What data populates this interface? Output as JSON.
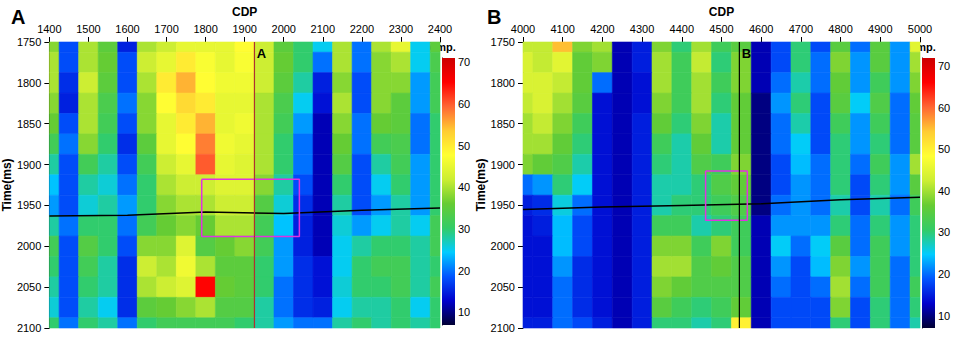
{
  "chart_data": [
    {
      "type": "heatmap",
      "title": "A",
      "xlabel": "CDP",
      "ylabel": "Time(ms)",
      "x": [
        1400,
        1450,
        1500,
        1550,
        1600,
        1650,
        1700,
        1750,
        1800,
        1850,
        1900,
        1950,
        2000,
        2050,
        2100,
        2150,
        2200,
        2250,
        2300,
        2350,
        2400
      ],
      "y": [
        1750,
        1775,
        1800,
        1825,
        1850,
        1875,
        1900,
        1925,
        1950,
        1975,
        2000,
        2025,
        2050,
        2075,
        2100
      ],
      "values": [
        [
          38,
          18,
          40,
          35,
          15,
          40,
          42,
          45,
          45,
          45,
          48,
          42,
          35,
          30,
          25,
          40,
          20,
          40,
          45,
          25,
          35
        ],
        [
          40,
          18,
          40,
          36,
          18,
          42,
          45,
          50,
          47,
          45,
          47,
          42,
          36,
          30,
          20,
          40,
          20,
          38,
          40,
          25,
          33
        ],
        [
          40,
          16,
          42,
          35,
          18,
          40,
          50,
          55,
          48,
          46,
          46,
          42,
          35,
          28,
          15,
          38,
          18,
          38,
          38,
          22,
          32
        ],
        [
          38,
          15,
          40,
          33,
          20,
          38,
          48,
          52,
          50,
          45,
          45,
          40,
          33,
          25,
          14,
          40,
          18,
          38,
          35,
          22,
          32
        ],
        [
          36,
          18,
          40,
          32,
          18,
          38,
          45,
          50,
          55,
          45,
          46,
          40,
          32,
          22,
          12,
          38,
          20,
          36,
          35,
          20,
          30
        ],
        [
          32,
          20,
          38,
          30,
          16,
          35,
          45,
          48,
          58,
          46,
          45,
          40,
          30,
          20,
          12,
          36,
          20,
          32,
          33,
          20,
          30
        ],
        [
          28,
          18,
          32,
          28,
          18,
          32,
          42,
          45,
          60,
          45,
          44,
          40,
          30,
          20,
          12,
          34,
          18,
          28,
          32,
          22,
          30
        ],
        [
          24,
          18,
          28,
          26,
          20,
          30,
          40,
          42,
          42,
          44,
          44,
          38,
          28,
          18,
          12,
          30,
          18,
          25,
          30,
          22,
          30
        ],
        [
          22,
          18,
          26,
          28,
          22,
          30,
          38,
          40,
          40,
          42,
          42,
          34,
          26,
          16,
          12,
          28,
          18,
          22,
          28,
          22,
          30
        ],
        [
          28,
          20,
          30,
          30,
          20,
          32,
          36,
          38,
          36,
          40,
          40,
          32,
          24,
          15,
          12,
          26,
          22,
          25,
          28,
          25,
          32
        ],
        [
          32,
          18,
          34,
          30,
          18,
          38,
          38,
          44,
          34,
          36,
          38,
          32,
          22,
          15,
          12,
          25,
          28,
          30,
          30,
          28,
          32
        ],
        [
          30,
          18,
          32,
          28,
          16,
          42,
          40,
          46,
          40,
          35,
          35,
          30,
          22,
          16,
          14,
          25,
          30,
          32,
          32,
          28,
          30
        ],
        [
          28,
          18,
          30,
          28,
          16,
          40,
          42,
          44,
          65,
          36,
          35,
          30,
          20,
          16,
          14,
          26,
          30,
          30,
          32,
          28,
          32
        ],
        [
          26,
          18,
          28,
          25,
          16,
          35,
          36,
          38,
          40,
          34,
          34,
          28,
          20,
          16,
          15,
          25,
          28,
          28,
          30,
          25,
          30
        ],
        [
          30,
          20,
          30,
          28,
          20,
          30,
          32,
          32,
          32,
          32,
          30,
          28,
          22,
          20,
          20,
          28,
          30,
          28,
          30,
          28,
          30
        ]
      ],
      "xlim": [
        1400,
        2400
      ],
      "xticks": [
        1400,
        1500,
        1600,
        1700,
        1800,
        1900,
        2000,
        2100,
        2200,
        2300,
        2400
      ],
      "ylim": [
        1750,
        2100
      ],
      "yticks": [
        1750,
        1800,
        1850,
        1900,
        1950,
        2000,
        2050,
        2100
      ],
      "grid": false,
      "colorbar": {
        "label": "Amp.",
        "range": [
          7,
          71
        ],
        "ticks": [
          10,
          20,
          30,
          40,
          50,
          60,
          70
        ]
      },
      "horizon": {
        "x": [
          1400,
          1600,
          1800,
          2000,
          2200,
          2400
        ],
        "y": [
          1963,
          1962,
          1958,
          1960,
          1956,
          1953
        ],
        "color": "#000000"
      },
      "box": {
        "x": [
          1790,
          2040
        ],
        "y": [
          1918,
          1988
        ],
        "color": "#e033e0"
      },
      "marker": {
        "label": "A",
        "x": 1925,
        "color": "#b03030"
      }
    },
    {
      "type": "heatmap",
      "title": "B",
      "xlabel": "CDP",
      "ylabel": "Time(ms)",
      "x": [
        4000,
        4050,
        4100,
        4150,
        4200,
        4250,
        4300,
        4350,
        4400,
        4450,
        4500,
        4550,
        4600,
        4650,
        4700,
        4750,
        4800,
        4850,
        4900,
        4950,
        5000
      ],
      "y": [
        1750,
        1775,
        1800,
        1825,
        1850,
        1875,
        1900,
        1925,
        1950,
        1975,
        2000,
        2025,
        2050,
        2075,
        2100
      ],
      "values": [
        [
          42,
          42,
          55,
          38,
          40,
          12,
          15,
          38,
          30,
          40,
          32,
          35,
          12,
          18,
          30,
          18,
          35,
          20,
          35,
          22,
          45
        ],
        [
          44,
          42,
          45,
          36,
          38,
          12,
          15,
          40,
          32,
          42,
          30,
          38,
          12,
          18,
          30,
          20,
          38,
          22,
          35,
          22,
          40
        ],
        [
          44,
          44,
          42,
          36,
          20,
          12,
          14,
          40,
          32,
          40,
          32,
          38,
          12,
          20,
          28,
          20,
          36,
          22,
          32,
          22,
          38
        ],
        [
          42,
          44,
          40,
          35,
          14,
          12,
          14,
          38,
          32,
          40,
          30,
          36,
          10,
          22,
          30,
          18,
          35,
          25,
          34,
          20,
          36
        ],
        [
          40,
          42,
          38,
          32,
          14,
          12,
          15,
          36,
          30,
          38,
          28,
          36,
          10,
          20,
          28,
          18,
          32,
          22,
          32,
          20,
          35
        ],
        [
          40,
          40,
          36,
          30,
          14,
          12,
          15,
          32,
          28,
          36,
          28,
          36,
          10,
          20,
          25,
          18,
          30,
          22,
          30,
          20,
          35
        ],
        [
          38,
          36,
          34,
          28,
          14,
          12,
          15,
          30,
          28,
          34,
          32,
          38,
          10,
          18,
          24,
          20,
          30,
          20,
          32,
          22,
          40
        ],
        [
          20,
          22,
          30,
          25,
          14,
          12,
          15,
          28,
          28,
          30,
          34,
          36,
          10,
          18,
          22,
          20,
          30,
          18,
          30,
          22,
          35
        ],
        [
          15,
          16,
          26,
          20,
          14,
          12,
          15,
          28,
          30,
          30,
          32,
          34,
          10,
          20,
          22,
          20,
          28,
          18,
          28,
          20,
          32
        ],
        [
          14,
          15,
          24,
          18,
          14,
          12,
          15,
          32,
          32,
          28,
          30,
          32,
          12,
          22,
          22,
          22,
          30,
          20,
          30,
          22,
          30
        ],
        [
          14,
          14,
          24,
          18,
          14,
          12,
          15,
          38,
          38,
          32,
          38,
          32,
          12,
          25,
          20,
          25,
          35,
          20,
          32,
          22,
          30
        ],
        [
          14,
          14,
          22,
          16,
          14,
          12,
          15,
          40,
          40,
          34,
          36,
          34,
          12,
          22,
          18,
          24,
          38,
          22,
          32,
          20,
          30
        ],
        [
          14,
          14,
          20,
          16,
          14,
          12,
          15,
          38,
          36,
          34,
          34,
          34,
          12,
          20,
          18,
          20,
          40,
          20,
          32,
          20,
          32
        ],
        [
          14,
          14,
          20,
          16,
          14,
          12,
          15,
          35,
          32,
          30,
          32,
          36,
          12,
          18,
          18,
          18,
          38,
          18,
          30,
          20,
          30
        ],
        [
          15,
          15,
          20,
          18,
          15,
          12,
          15,
          30,
          30,
          28,
          30,
          50,
          12,
          18,
          18,
          18,
          30,
          18,
          30,
          20,
          28
        ]
      ],
      "xlim": [
        4000,
        5000
      ],
      "xticks": [
        4000,
        4100,
        4200,
        4300,
        4400,
        4500,
        4600,
        4700,
        4800,
        4900,
        5000
      ],
      "ylim": [
        1750,
        2100
      ],
      "yticks": [
        1750,
        1800,
        1850,
        1900,
        1950,
        2000,
        2050,
        2100
      ],
      "grid": false,
      "colorbar": {
        "label": "Amp.",
        "range": [
          7,
          72
        ],
        "ticks": [
          10,
          20,
          30,
          40,
          50,
          60,
          70
        ]
      },
      "horizon": {
        "x": [
          4000,
          4200,
          4400,
          4600,
          4800,
          5000
        ],
        "y": [
          1955,
          1952,
          1950,
          1948,
          1943,
          1940
        ],
        "color": "#000000"
      },
      "box": {
        "x": [
          4460,
          4565
        ],
        "y": [
          1908,
          1968
        ],
        "color": "#e033e0"
      },
      "marker": {
        "label": "B",
        "x": 4545,
        "color": "#000000"
      }
    }
  ]
}
